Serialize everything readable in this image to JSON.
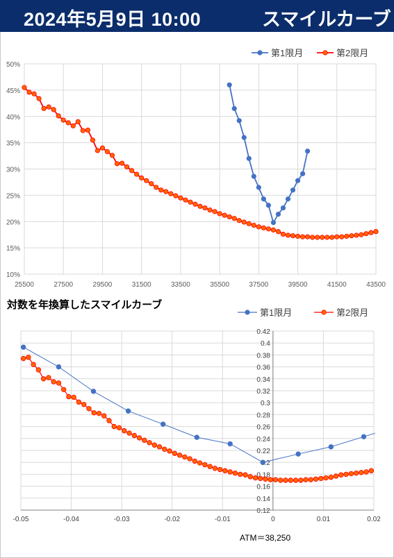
{
  "header": {
    "date": "2024年5月9日 10:00",
    "title": "スマイルカーブ"
  },
  "colors": {
    "header_bg": "#0b2d6b",
    "series1": "#4472c4",
    "series2_line": "#ff0000",
    "series2_marker": "#ff6600",
    "grid": "#d9d9d9"
  },
  "chart_data": [
    {
      "type": "line",
      "title": "",
      "legend_position": "top-right",
      "xlim": [
        25500,
        43500
      ],
      "ylim": [
        0.1,
        0.5
      ],
      "x_ticks": [
        "25500",
        "27500",
        "29500",
        "31500",
        "33500",
        "35500",
        "37500",
        "39500",
        "41500",
        "43500"
      ],
      "y_ticks": [
        "10%",
        "15%",
        "20%",
        "25%",
        "30%",
        "35%",
        "40%",
        "45%",
        "50%"
      ],
      "grid": true,
      "series": [
        {
          "name": "第1限月",
          "x": [
            36000,
            36250,
            36500,
            36750,
            37000,
            37250,
            37500,
            37750,
            38000,
            38250,
            38500,
            38750,
            39000,
            39250,
            39500,
            39750,
            40000
          ],
          "y": [
            0.46,
            0.415,
            0.392,
            0.36,
            0.32,
            0.286,
            0.265,
            0.243,
            0.231,
            0.198,
            0.214,
            0.226,
            0.243,
            0.26,
            0.278,
            0.291,
            0.334
          ]
        },
        {
          "name": "第2限月",
          "x": [
            25500,
            25750,
            26000,
            26250,
            26500,
            26750,
            27000,
            27250,
            27500,
            27750,
            28000,
            28250,
            28500,
            28750,
            29000,
            29250,
            29500,
            29750,
            30000,
            30250,
            30500,
            30750,
            31000,
            31250,
            31500,
            31750,
            32000,
            32250,
            32500,
            32750,
            33000,
            33250,
            33500,
            33750,
            34000,
            34250,
            34500,
            34750,
            35000,
            35250,
            35500,
            35750,
            36000,
            36250,
            36500,
            36750,
            37000,
            37250,
            37500,
            37750,
            38000,
            38250,
            38500,
            38750,
            39000,
            39250,
            39500,
            39750,
            40000,
            40250,
            40500,
            40750,
            41000,
            41250,
            41500,
            41750,
            42000,
            42250,
            42500,
            42750,
            43000,
            43250,
            43500
          ],
          "y": [
            0.455,
            0.446,
            0.443,
            0.434,
            0.415,
            0.418,
            0.413,
            0.401,
            0.393,
            0.388,
            0.382,
            0.39,
            0.373,
            0.374,
            0.355,
            0.335,
            0.34,
            0.333,
            0.326,
            0.31,
            0.311,
            0.304,
            0.297,
            0.29,
            0.283,
            0.278,
            0.272,
            0.265,
            0.26,
            0.257,
            0.253,
            0.249,
            0.245,
            0.241,
            0.237,
            0.233,
            0.229,
            0.226,
            0.222,
            0.219,
            0.215,
            0.212,
            0.209,
            0.206,
            0.202,
            0.199,
            0.196,
            0.193,
            0.19,
            0.188,
            0.186,
            0.184,
            0.181,
            0.176,
            0.174,
            0.173,
            0.172,
            0.171,
            0.171,
            0.17,
            0.17,
            0.17,
            0.17,
            0.17,
            0.171,
            0.171,
            0.172,
            0.173,
            0.174,
            0.175,
            0.177,
            0.179,
            0.181
          ]
        }
      ]
    },
    {
      "type": "line",
      "title": "対数を年換算したスマイルカーブ",
      "legend_position": "top-right",
      "xlim": [
        -0.05,
        0.02
      ],
      "ylim": [
        0.12,
        0.42
      ],
      "x_ticks": [
        "-0.05",
        "-0.04",
        "-0.03",
        "-0.02",
        "-0.01",
        "0",
        "0.01",
        "0.02"
      ],
      "y_ticks": [
        "0.12",
        "0.14",
        "0.16",
        "0.18",
        "0.2",
        "0.22",
        "0.24",
        "0.26",
        "0.28",
        "0.3",
        "0.32",
        "0.34",
        "0.36",
        "0.38",
        "0.4",
        "0.42"
      ],
      "grid": true,
      "annotation": "ATM＝38,250",
      "series": [
        {
          "name": "第1限月",
          "x": [
            -0.0495,
            -0.0425,
            -0.0356,
            -0.0287,
            -0.0218,
            -0.0151,
            -0.0085,
            -0.002,
            0.005,
            0.0115,
            0.018,
            0.0245
          ],
          "y": [
            0.393,
            0.36,
            0.319,
            0.286,
            0.264,
            0.242,
            0.231,
            0.2,
            0.214,
            0.226,
            0.243,
            0.26
          ]
        },
        {
          "name": "第2限月",
          "x": [
            -0.0495,
            -0.0485,
            -0.0475,
            -0.0465,
            -0.0455,
            -0.0445,
            -0.0435,
            -0.0425,
            -0.0415,
            -0.0405,
            -0.0395,
            -0.0385,
            -0.0375,
            -0.0365,
            -0.0355,
            -0.0345,
            -0.0335,
            -0.0325,
            -0.0315,
            -0.0305,
            -0.0295,
            -0.0285,
            -0.0275,
            -0.0265,
            -0.0255,
            -0.0245,
            -0.0235,
            -0.0225,
            -0.0215,
            -0.0205,
            -0.0195,
            -0.0185,
            -0.0175,
            -0.0165,
            -0.0155,
            -0.0145,
            -0.0135,
            -0.0125,
            -0.0115,
            -0.0105,
            -0.0095,
            -0.0085,
            -0.0075,
            -0.0065,
            -0.0055,
            -0.0045,
            -0.0035,
            -0.0025,
            -0.0015,
            -0.0005,
            0.0005,
            0.0015,
            0.0025,
            0.0035,
            0.0045,
            0.0055,
            0.0065,
            0.0075,
            0.0085,
            0.0095,
            0.0105,
            0.0115,
            0.0125,
            0.0135,
            0.0145,
            0.0155,
            0.0165,
            0.0175,
            0.0185,
            0.0195
          ],
          "y": [
            0.374,
            0.376,
            0.364,
            0.355,
            0.34,
            0.342,
            0.335,
            0.333,
            0.322,
            0.31,
            0.309,
            0.301,
            0.297,
            0.29,
            0.283,
            0.282,
            0.278,
            0.27,
            0.26,
            0.258,
            0.253,
            0.249,
            0.245,
            0.241,
            0.237,
            0.233,
            0.229,
            0.226,
            0.222,
            0.219,
            0.215,
            0.212,
            0.209,
            0.206,
            0.202,
            0.199,
            0.196,
            0.193,
            0.19,
            0.188,
            0.186,
            0.184,
            0.182,
            0.18,
            0.179,
            0.176,
            0.174,
            0.173,
            0.172,
            0.171,
            0.171,
            0.17,
            0.17,
            0.17,
            0.17,
            0.17,
            0.171,
            0.171,
            0.172,
            0.173,
            0.174,
            0.175,
            0.177,
            0.179,
            0.18,
            0.181,
            0.182,
            0.183,
            0.184,
            0.186
          ]
        }
      ]
    }
  ]
}
